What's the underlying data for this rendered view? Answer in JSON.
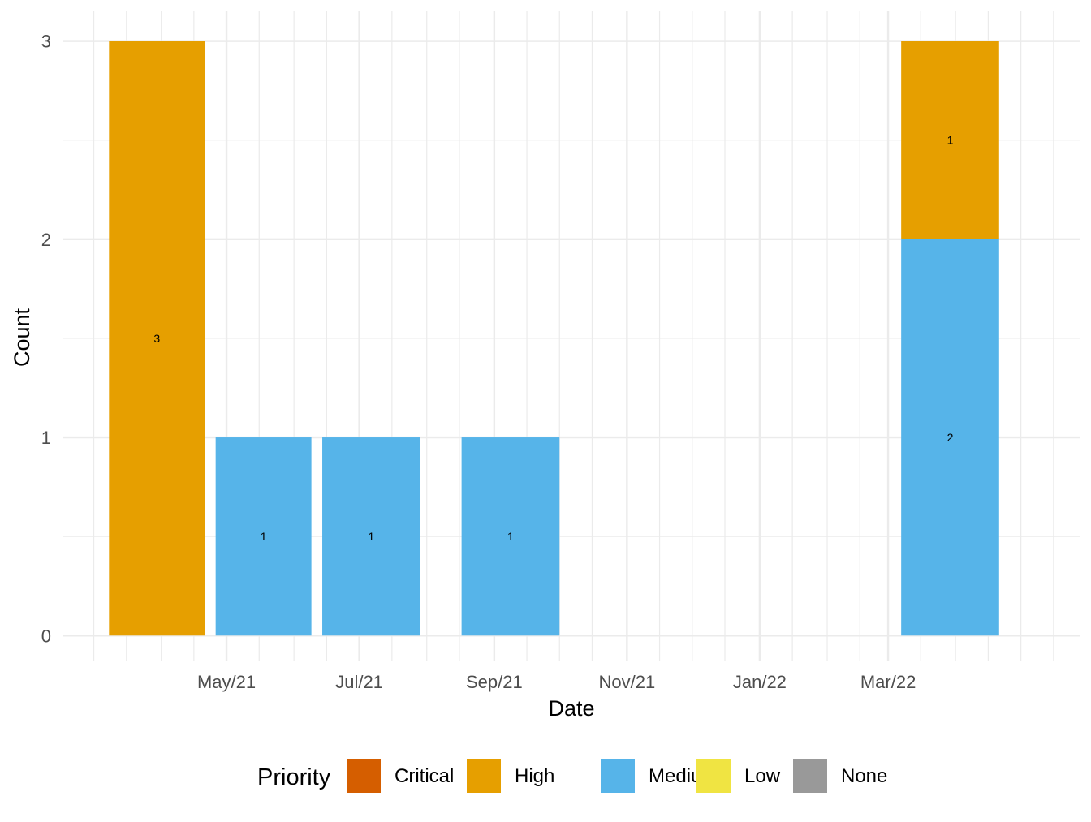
{
  "chart_data": {
    "type": "bar",
    "stacked": true,
    "xlabel": "Date",
    "ylabel": "Count",
    "x_axis": {
      "type": "date",
      "range": [
        "2021-02-15",
        "2022-05-28"
      ],
      "ticks": [
        {
          "date": "2021-05-01",
          "label": "May/21"
        },
        {
          "date": "2021-07-01",
          "label": "Jul/21"
        },
        {
          "date": "2021-09-01",
          "label": "Sep/21"
        },
        {
          "date": "2021-11-01",
          "label": "Nov/21"
        },
        {
          "date": "2022-01-01",
          "label": "Jan/22"
        },
        {
          "date": "2022-03-01",
          "label": "Mar/22"
        }
      ],
      "minor_grid": [
        "2021-03-01",
        "2021-03-16",
        "2021-04-01",
        "2021-04-16",
        "2021-05-16",
        "2021-06-01",
        "2021-06-16",
        "2021-07-16",
        "2021-08-01",
        "2021-08-16",
        "2021-09-16",
        "2021-10-01",
        "2021-10-16",
        "2021-11-16",
        "2021-12-01",
        "2021-12-16",
        "2022-01-16",
        "2022-02-01",
        "2022-02-16",
        "2022-03-16",
        "2022-04-01",
        "2022-04-16",
        "2022-05-01",
        "2022-05-16"
      ]
    },
    "y_axis": {
      "range": [
        -0.13,
        3.15
      ],
      "ticks": [
        0,
        1,
        2,
        3
      ],
      "minor": [
        0.5,
        1.5,
        2.5
      ]
    },
    "grid": true,
    "bars": [
      {
        "start": "2021-03-08",
        "end": "2021-04-21",
        "stack": [
          {
            "priority": "High",
            "value": 3
          }
        ]
      },
      {
        "start": "2021-04-26",
        "end": "2021-06-09",
        "stack": [
          {
            "priority": "Medium",
            "value": 1
          }
        ]
      },
      {
        "start": "2021-06-14",
        "end": "2021-07-29",
        "stack": [
          {
            "priority": "Medium",
            "value": 1
          }
        ]
      },
      {
        "start": "2021-08-17",
        "end": "2021-10-01",
        "stack": [
          {
            "priority": "Medium",
            "value": 1
          }
        ]
      },
      {
        "start": "2022-03-07",
        "end": "2022-04-21",
        "stack": [
          {
            "priority": "Medium",
            "value": 2
          },
          {
            "priority": "High",
            "value": 1
          }
        ]
      }
    ],
    "legend": {
      "title": "Priority",
      "position": "bottom",
      "items": [
        {
          "name": "Critical",
          "color": "#D55E00"
        },
        {
          "name": "High",
          "color": "#E69F00"
        },
        {
          "name": "Medium",
          "color": "#56B4E9"
        },
        {
          "name": "Low",
          "color": "#F0E442"
        },
        {
          "name": "None",
          "color": "#999999"
        }
      ]
    }
  }
}
